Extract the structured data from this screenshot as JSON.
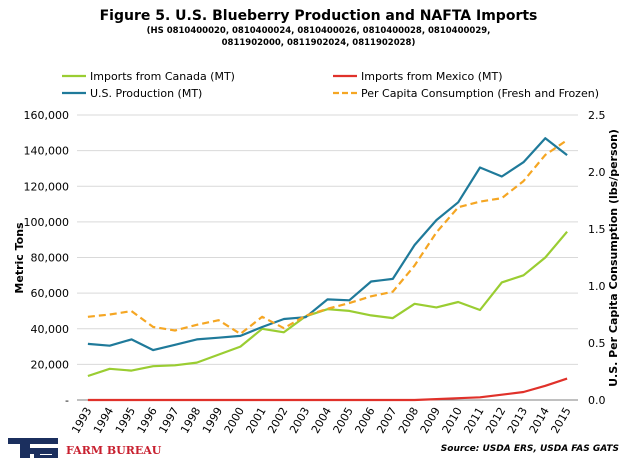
{
  "chart_data": {
    "type": "line",
    "title": "Figure 5. U.S. Blueberry Production and NAFTA Imports",
    "subtitle_lines": [
      "(HS 0810400020,  0810400024, 0810400026,  0810400028,  0810400029,",
      "0811902000,  0811902024,  0811902028)"
    ],
    "categories": [
      "1993",
      "1994",
      "1995",
      "1996",
      "1997",
      "1998",
      "1999",
      "2000",
      "2001",
      "2002",
      "2003",
      "2004",
      "2005",
      "2006",
      "2007",
      "2008",
      "2009",
      "2010",
      "2011",
      "2012",
      "2013",
      "2014",
      "2015"
    ],
    "ylabel": "Metric Tons",
    "y2label": "U.S. Per Capita Consumption  (lbs/person)",
    "ylim": [
      0,
      160000
    ],
    "y2lim": [
      0,
      2.5
    ],
    "y_ticks": [
      "-",
      "20,000",
      "40,000",
      "60,000",
      "80,000",
      "100,000",
      "120,000",
      "140,000",
      "160,000"
    ],
    "y2_ticks": [
      "0.0",
      "0.5",
      "1.0",
      "1.5",
      "2.0",
      "2.5"
    ],
    "grid": true,
    "legend_position": "top",
    "series": [
      {
        "name": "Imports from Canada (MT)",
        "axis": "left",
        "color": "#9acd32",
        "dash": "solid",
        "values": [
          13500,
          17500,
          16500,
          19000,
          19500,
          21000,
          25500,
          30000,
          40000,
          38000,
          47000,
          51000,
          50000,
          47500,
          46000,
          54000,
          52000,
          55000,
          50500,
          66000,
          70000,
          80000,
          94500
        ]
      },
      {
        "name": "Imports from Mexico (MT)",
        "axis": "left",
        "color": "#e0312a",
        "dash": "solid",
        "values": [
          0,
          0,
          0,
          0,
          0,
          0,
          0,
          0,
          0,
          0,
          0,
          0,
          0,
          0,
          0,
          0,
          500,
          1000,
          1500,
          3000,
          4500,
          8000,
          12000
        ]
      },
      {
        "name": "U.S. Production (MT)",
        "axis": "left",
        "color": "#1f7a9a",
        "dash": "solid",
        "values": [
          31500,
          30500,
          34000,
          28000,
          31000,
          34000,
          35000,
          36000,
          41000,
          45500,
          46500,
          56500,
          56000,
          66500,
          68000,
          87000,
          101000,
          111000,
          130500,
          125500,
          133500,
          147000,
          137500
        ]
      },
      {
        "name": "Per Capita Consumption (Fresh and Frozen)",
        "axis": "right",
        "color": "#f5a623",
        "dash": "dashed",
        "values": [
          0.73,
          0.75,
          0.78,
          0.64,
          0.61,
          0.66,
          0.7,
          0.58,
          0.73,
          0.63,
          0.74,
          0.8,
          0.85,
          0.91,
          0.95,
          1.18,
          1.47,
          1.69,
          1.74,
          1.77,
          1.92,
          2.15,
          2.28
        ]
      }
    ]
  },
  "footer": {
    "logo_text": "FARM BUREAU",
    "source": "Source:  USDA ERS, USDA FAS GATS"
  }
}
